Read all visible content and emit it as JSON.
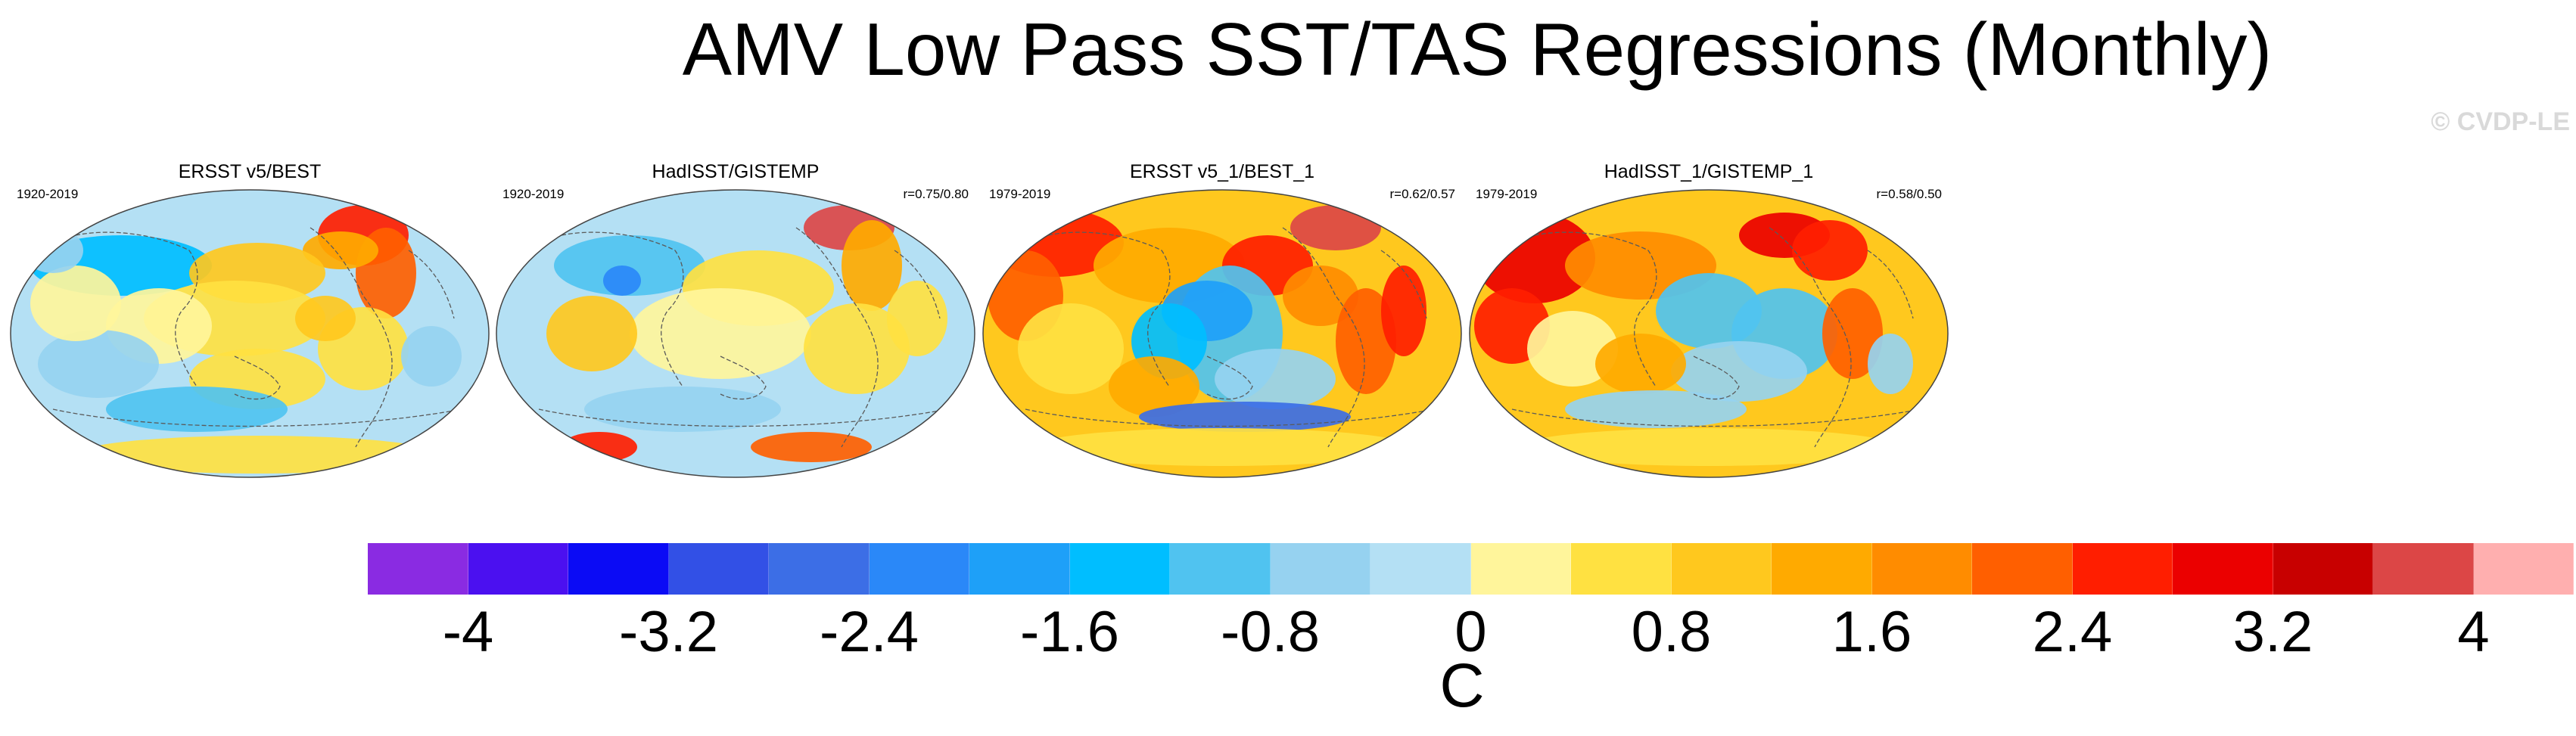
{
  "title": "AMV Low Pass SST/TAS Regressions (Monthly)",
  "watermark": "© CVDP-LE",
  "panels": [
    {
      "title": "ERSST v5/BEST",
      "period": "1920-2019",
      "stats": "",
      "pattern": "ersst"
    },
    {
      "title": "HadISST/GISTEMP",
      "period": "1920-2019",
      "stats": "r=0.75/0.80",
      "pattern": "hadisst"
    },
    {
      "title": "ERSST v5_1/BEST_1",
      "period": "1979-2019",
      "stats": "r=0.62/0.57",
      "pattern": "ersst1"
    },
    {
      "title": "HadISST_1/GISTEMP_1",
      "period": "1979-2019",
      "stats": "r=0.58/0.50",
      "pattern": "hadisst1"
    }
  ],
  "colorbar": {
    "unit": "C",
    "ticks": [
      "-4",
      "-3.2",
      "-2.4",
      "-1.6",
      "-0.8",
      "0",
      "0.8",
      "1.6",
      "2.4",
      "3.2",
      "4"
    ],
    "colors": [
      "#8a2be2",
      "#4b10f0",
      "#0b0bf5",
      "#3250e6",
      "#3c6ee6",
      "#2a88f8",
      "#1ea0f8",
      "#00beff",
      "#50c3f0",
      "#96d2f0",
      "#b4e0f4",
      "#fff59b",
      "#ffe141",
      "#ffc81e",
      "#ffaa00",
      "#ff8c00",
      "#ff5f00",
      "#ff1e00",
      "#eb0000",
      "#c80000",
      "#dc4646",
      "#ffafaf"
    ]
  }
}
